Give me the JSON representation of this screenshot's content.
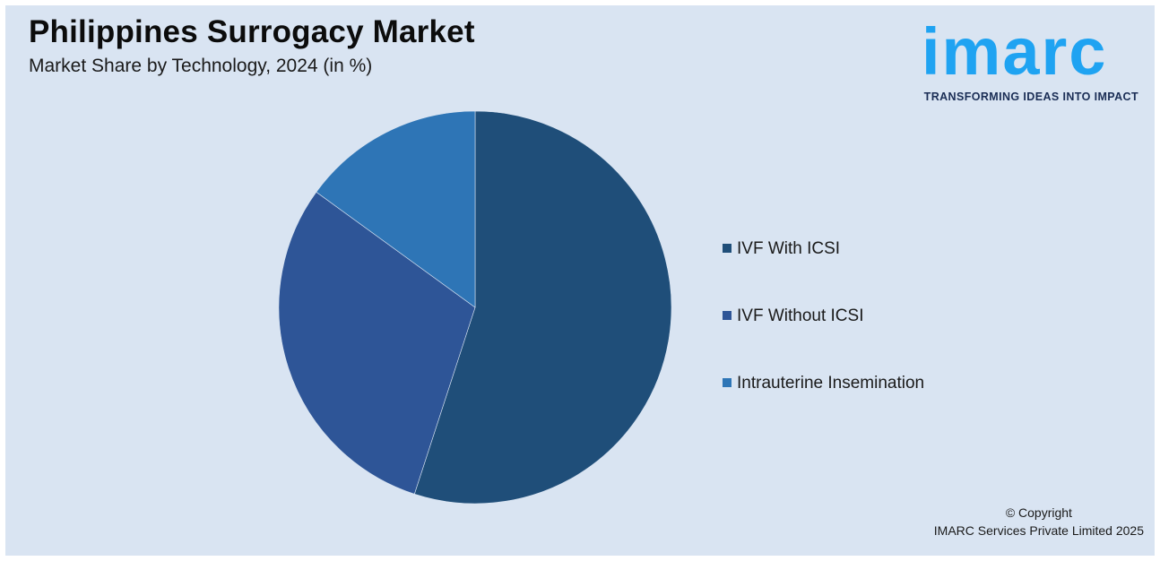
{
  "header": {
    "title": "Philippines Surrogacy Market",
    "subtitle": "Market Share by Technology, 2024 (in %)"
  },
  "logo": {
    "word": "imarc",
    "tagline": "TRANSFORMING IDEAS INTO IMPACT",
    "color": "#1fa3f2"
  },
  "chart_data": {
    "type": "pie",
    "title": "Philippines Surrogacy Market",
    "subtitle": "Market Share by Technology, 2024 (in %)",
    "legend_position": "right",
    "start_angle": "12 o'clock",
    "direction": "clockwise",
    "categories": [
      "IVF With ICSI",
      "IVF Without ICSI",
      "Intrauterine Insemination"
    ],
    "values": [
      55,
      30,
      15
    ],
    "colors": [
      "#1f4e79",
      "#2e5597",
      "#2e75b6"
    ]
  },
  "footer": {
    "copyright_line1": "© Copyright",
    "copyright_line2": "IMARC Services Private Limited 2025"
  }
}
